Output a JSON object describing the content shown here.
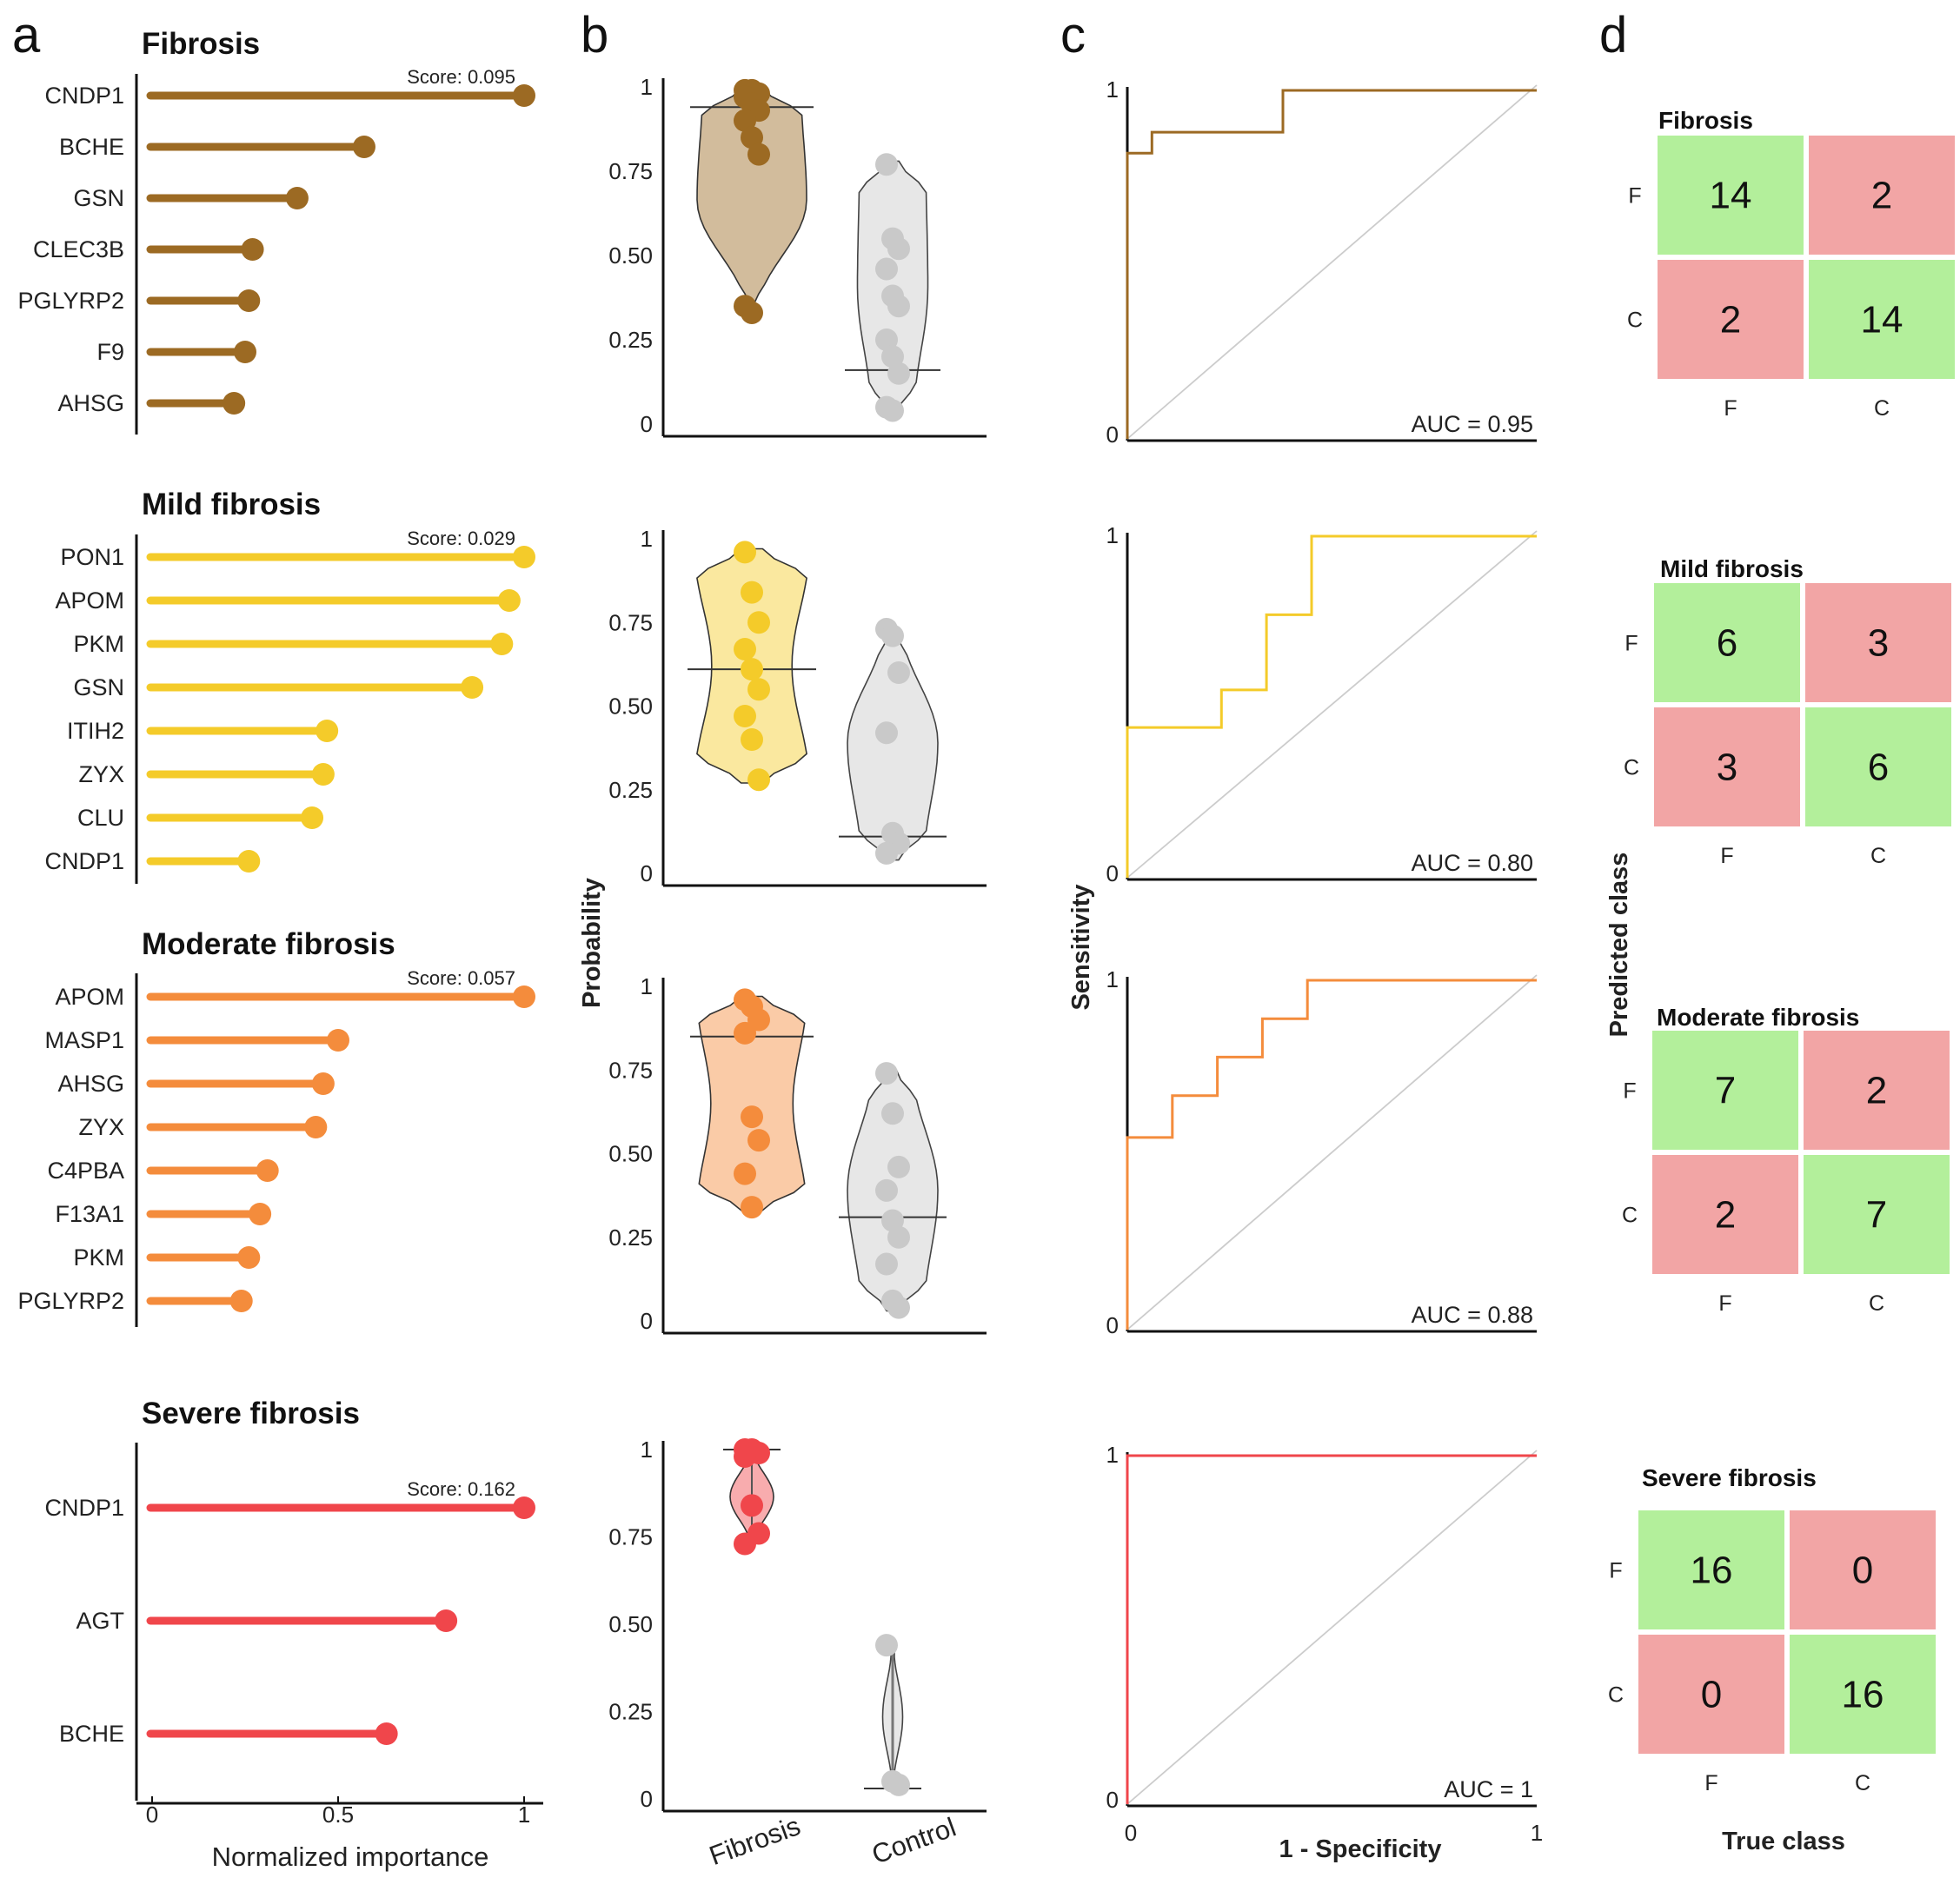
{
  "panels": {
    "a": "a",
    "b": "b",
    "c": "c",
    "d": "d"
  },
  "colors": {
    "Fibrosis": "#9c6a23",
    "Mild fibrosis": "#f4cb2a",
    "Moderate fibrosis": "#f48c3c",
    "Severe fibrosis": "#f0464b",
    "control": "#c9c9c9",
    "correct": "#b3ef9b",
    "incorrect": "#f2a5a5"
  },
  "chart_data": [
    {
      "panel": "a",
      "type": "lollipop",
      "xlabel": "Normalized importance",
      "xticks": [
        "0",
        "0.5",
        "1"
      ],
      "xlim": [
        0,
        1
      ],
      "groups": [
        {
          "title": "Fibrosis",
          "score": "Score: 0.095",
          "genes": [
            "CNDP1",
            "BCHE",
            "GSN",
            "CLEC3B",
            "PGLYRP2",
            "F9",
            "AHSG"
          ],
          "values": [
            1.0,
            0.57,
            0.39,
            0.27,
            0.26,
            0.25,
            0.22
          ]
        },
        {
          "title": "Mild fibrosis",
          "score": "Score: 0.029",
          "genes": [
            "PON1",
            "APOM",
            "PKM",
            "GSN",
            "ITIH2",
            "ZYX",
            "CLU",
            "CNDP1"
          ],
          "values": [
            1.0,
            0.96,
            0.94,
            0.86,
            0.47,
            0.46,
            0.43,
            0.26
          ]
        },
        {
          "title": "Moderate fibrosis",
          "score": "Score: 0.057",
          "genes": [
            "APOM",
            "MASP1",
            "AHSG",
            "ZYX",
            "C4PBA",
            "F13A1",
            "PKM",
            "PGLYRP2"
          ],
          "values": [
            1.0,
            0.5,
            0.46,
            0.44,
            0.31,
            0.29,
            0.26,
            0.24
          ]
        },
        {
          "title": "Severe fibrosis",
          "score": "Score: 0.162",
          "genes": [
            "CNDP1",
            "AGT",
            "BCHE"
          ],
          "values": [
            1.0,
            0.79,
            0.63
          ]
        }
      ]
    },
    {
      "panel": "b",
      "type": "violin",
      "ylabel": "Probability",
      "yticks": [
        "0",
        "0.25",
        "0.50",
        "0.75",
        "1"
      ],
      "ylim": [
        0,
        1
      ],
      "categories": [
        "Fibrosis",
        "Control"
      ],
      "groups": [
        {
          "fibrosis_points": [
            0.99,
            0.99,
            0.98,
            0.97,
            0.95,
            0.93,
            0.9,
            0.85,
            0.8,
            0.35,
            0.33
          ],
          "fibrosis_median": 0.94,
          "fibrosis_range": [
            0.33,
            1.0
          ],
          "control_points": [
            0.77,
            0.55,
            0.52,
            0.46,
            0.38,
            0.35,
            0.25,
            0.2,
            0.15,
            0.05,
            0.04
          ],
          "control_median": 0.16,
          "control_range": [
            0.03,
            0.78
          ]
        },
        {
          "fibrosis_points": [
            0.96,
            0.84,
            0.75,
            0.67,
            0.61,
            0.55,
            0.47,
            0.4,
            0.28
          ],
          "fibrosis_median": 0.61,
          "fibrosis_range": [
            0.27,
            0.97
          ],
          "control_points": [
            0.73,
            0.71,
            0.6,
            0.42,
            0.12,
            0.09,
            0.06
          ],
          "control_median": 0.11,
          "control_range": [
            0.04,
            0.74
          ]
        },
        {
          "fibrosis_points": [
            0.96,
            0.94,
            0.9,
            0.86,
            0.61,
            0.54,
            0.44,
            0.34
          ],
          "fibrosis_median": 0.85,
          "fibrosis_range": [
            0.33,
            0.97
          ],
          "control_points": [
            0.74,
            0.62,
            0.46,
            0.39,
            0.3,
            0.25,
            0.17,
            0.06,
            0.04
          ],
          "control_median": 0.31,
          "control_range": [
            0.03,
            0.75
          ]
        },
        {
          "fibrosis_points": [
            1.0,
            1.0,
            0.99,
            0.98,
            0.84,
            0.76,
            0.73
          ],
          "fibrosis_median": 1.0,
          "fibrosis_range": [
            0.73,
            1.0
          ],
          "control_points": [
            0.44,
            0.05,
            0.04
          ],
          "control_median": 0.03,
          "control_range": [
            0.03,
            0.44
          ]
        }
      ]
    },
    {
      "panel": "c",
      "type": "line",
      "ylabel": "Sensitivity",
      "xlabel": "1 - Specificity",
      "xticks": [
        "0",
        "1"
      ],
      "yticks": [
        "0",
        "1"
      ],
      "xlim": [
        0,
        1
      ],
      "ylim": [
        0,
        1
      ],
      "curves": [
        {
          "auc": "AUC = 0.95",
          "x": [
            0,
            0,
            0,
            0.06,
            0.06,
            0.38,
            0.38,
            1.0
          ],
          "y": [
            0,
            0,
            0.82,
            0.82,
            0.88,
            0.88,
            1.0,
            1.0
          ]
        },
        {
          "auc": "AUC = 0.80",
          "x": [
            0,
            0,
            0,
            0.23,
            0.23,
            0.34,
            0.34,
            0.45,
            0.45,
            1.0
          ],
          "y": [
            0,
            0,
            0.44,
            0.44,
            0.55,
            0.55,
            0.77,
            0.77,
            1.0,
            1.0
          ]
        },
        {
          "auc": "AUC = 0.88",
          "x": [
            0,
            0,
            0,
            0.11,
            0.11,
            0.22,
            0.22,
            0.33,
            0.33,
            0.44,
            0.44,
            1.0
          ],
          "y": [
            0,
            0,
            0.55,
            0.55,
            0.67,
            0.67,
            0.78,
            0.78,
            0.89,
            0.89,
            1.0,
            1.0
          ]
        },
        {
          "auc": "AUC = 1",
          "x": [
            0,
            0,
            0,
            0,
            1.0
          ],
          "y": [
            0,
            0,
            1.0,
            1.0,
            1.0
          ]
        }
      ]
    },
    {
      "panel": "d",
      "type": "heatmap",
      "xlabel": "True class",
      "ylabel": "Predicted class",
      "row_labels": [
        "F",
        "C"
      ],
      "col_labels": [
        "F",
        "C"
      ],
      "matrices": [
        {
          "title": "Fibrosis",
          "values": [
            [
              14,
              2
            ],
            [
              2,
              14
            ]
          ]
        },
        {
          "title": "Mild fibrosis",
          "values": [
            [
              6,
              3
            ],
            [
              3,
              6
            ]
          ]
        },
        {
          "title": "Moderate fibrosis",
          "values": [
            [
              7,
              2
            ],
            [
              2,
              7
            ]
          ]
        },
        {
          "title": "Severe fibrosis",
          "values": [
            [
              16,
              0
            ],
            [
              0,
              16
            ]
          ]
        }
      ]
    }
  ]
}
